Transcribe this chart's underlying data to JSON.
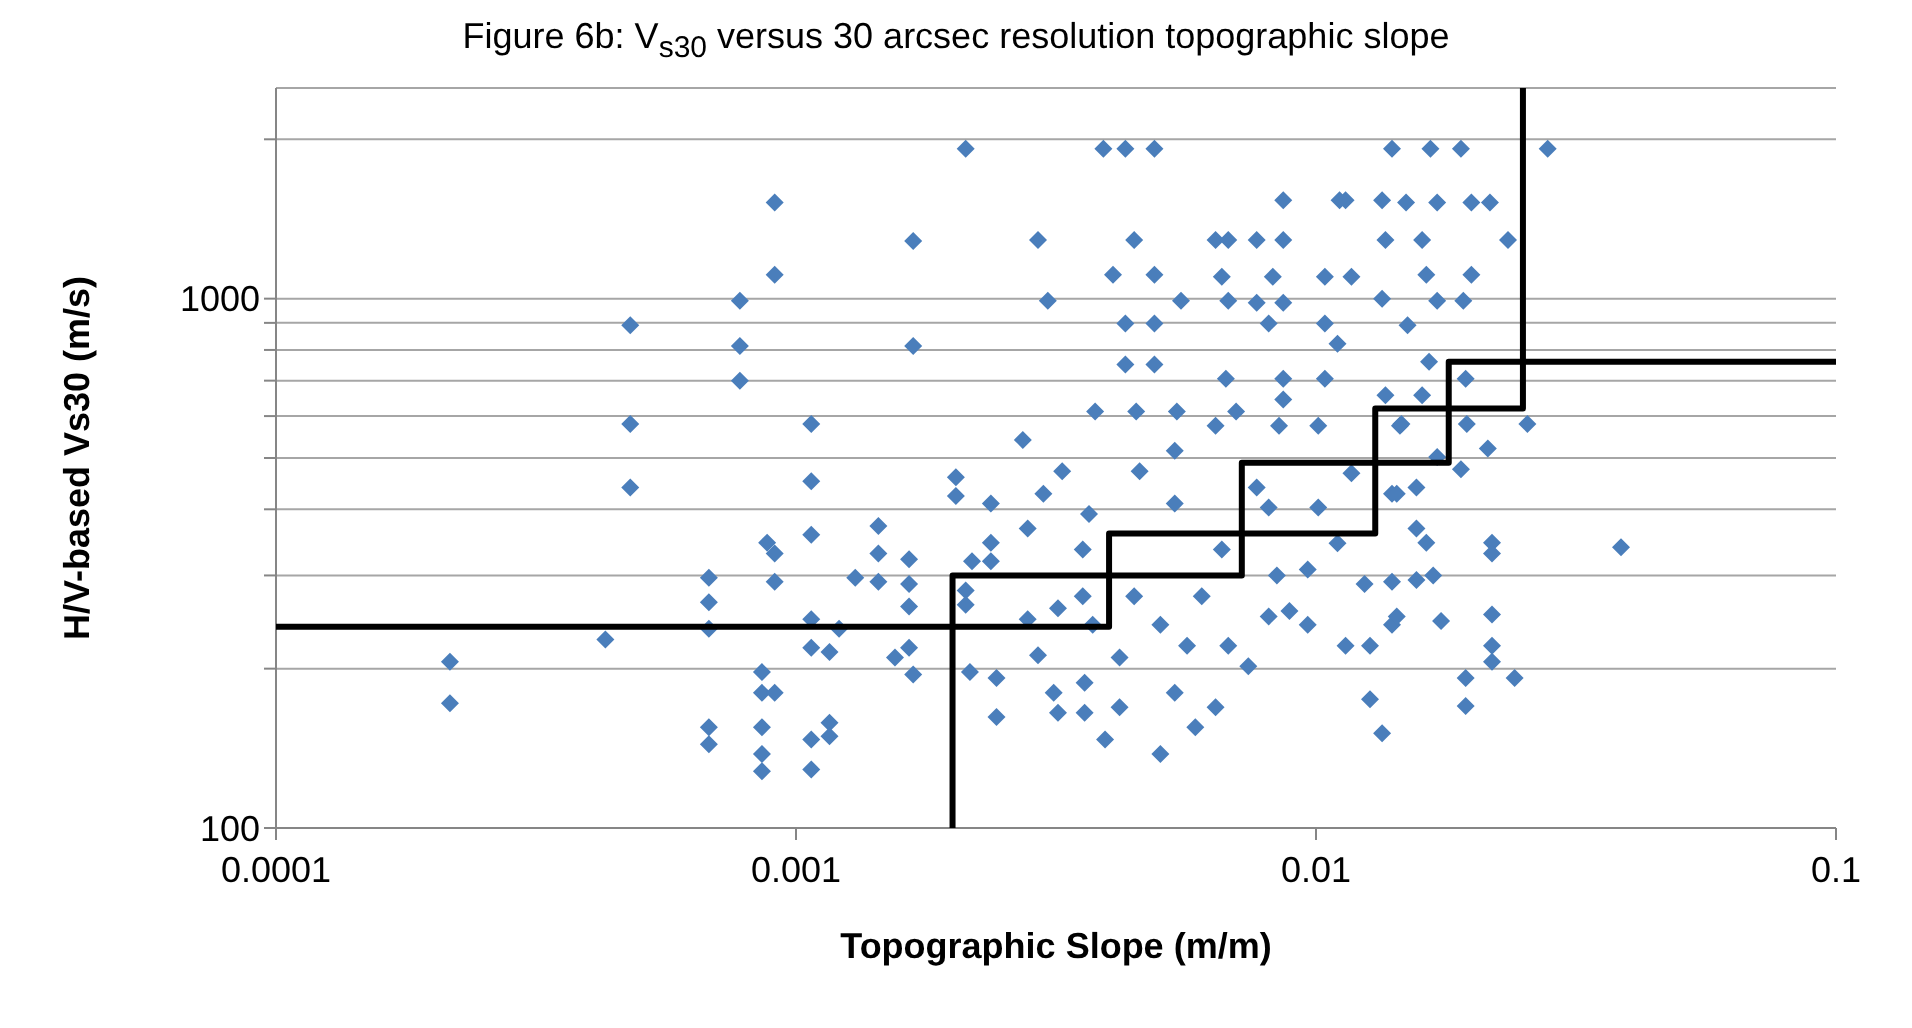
{
  "chart_data": {
    "type": "scatter",
    "title": "Figure 6b: V$_{s30}$ versus 30 arcsec resolution topographic slope",
    "xlabel": "Topographic Slope (m/m)",
    "ylabel": "H/V-based Vs30 (m/s)",
    "log": "xy",
    "grid": "y",
    "legend": false,
    "xlim": [
      0.0001,
      0.1
    ],
    "xticks": [
      0.0001,
      0.001,
      0.01,
      0.1
    ],
    "ylim": [
      100,
      2500
    ],
    "yticks": [
      100,
      {
        "value": 200,
        "label": null
      },
      {
        "value": 300,
        "label": null
      },
      {
        "value": 400,
        "label": null
      },
      {
        "value": 500,
        "label": null
      },
      {
        "value": 600,
        "label": null
      },
      {
        "value": 700,
        "label": null
      },
      {
        "value": 800,
        "label": null
      },
      {
        "value": 900,
        "label": null
      },
      1000,
      {
        "value": 2000,
        "label": null
      }
    ],
    "series": [
      {
        "marker": "diamond",
        "color": "#4a7ebb",
        "x": [
          0.000216,
          0.000216,
          0.00043,
          0.00048,
          0.00048,
          0.00048,
          0.00068,
          0.00068,
          0.00068,
          0.00068,
          0.00068,
          0.00078,
          0.00078,
          0.00078,
          0.00086,
          0.00086,
          0.00086,
          0.00086,
          0.00086,
          0.00088,
          0.00091,
          0.00091,
          0.00091,
          0.00091,
          0.00091,
          0.00107,
          0.00107,
          0.00107,
          0.00107,
          0.00107,
          0.00107,
          0.00107,
          0.00116,
          0.00116,
          0.00116,
          0.00121,
          0.0013,
          0.00144,
          0.00144,
          0.00144,
          0.00155,
          0.00165,
          0.00165,
          0.00165,
          0.00165,
          0.00168,
          0.00168,
          0.00168,
          0.00212,
          0.0039,
          0.0043,
          0.00489,
          0.00292,
          0.00447,
          0.00641,
          0.00769,
          0.00865,
          0.00407,
          0.00489,
          0.00305,
          0.0055,
          0.00678,
          0.0043,
          0.00489,
          0.0043,
          0.00489,
          0.00376,
          0.00451,
          0.0054,
          0.00273,
          0.00203,
          0.00203,
          0.00237,
          0.00237,
          0.00237,
          0.00218,
          0.00212,
          0.00212,
          0.00279,
          0.00292,
          0.00216,
          0.00243,
          0.00243,
          0.00313,
          0.00319,
          0.00319,
          0.00325,
          0.00299,
          0.00279,
          0.00366,
          0.00356,
          0.00356,
          0.00372,
          0.00359,
          0.00359,
          0.00393,
          0.00419,
          0.00419,
          0.00447,
          0.00458,
          0.00535,
          0.00535,
          0.00502,
          0.00502,
          0.00535,
          0.00565,
          0.00603,
          0.00641,
          0.00586,
          0.00678,
          0.00659,
          0.00641,
          0.00702,
          0.00671,
          0.00769,
          0.00811,
          0.00849,
          0.00865,
          0.00865,
          0.00841,
          0.00811,
          0.00741,
          0.00889,
          0.00964,
          0.00964,
          0.0101,
          0.0101,
          0.0104,
          0.011,
          0.0117,
          0.011,
          0.0114,
          0.0124,
          0.0127,
          0.0127,
          0.0134,
          0.014,
          0.014,
          0.014,
          0.0145,
          0.0136,
          0.0134,
          0.0136,
          0.0134,
          0.0114,
          0.014,
          0.0104,
          0.00811,
          0.00865,
          0.00769,
          0.00659,
          0.00826,
          0.0104,
          0.0117,
          0.00865,
          0.0111,
          0.00678,
          0.0166,
          0.019,
          0.0279,
          0.0149,
          0.0171,
          0.0199,
          0.0216,
          0.0234,
          0.016,
          0.0163,
          0.0199,
          0.0171,
          0.0192,
          0.015,
          0.0165,
          0.0194,
          0.016,
          0.0146,
          0.0195,
          0.0255,
          0.0214,
          0.019,
          0.0171,
          0.0143,
          0.0156,
          0.0156,
          0.0163,
          0.0218,
          0.0218,
          0.0386,
          0.0156,
          0.0168,
          0.0143,
          0.0174,
          0.0218,
          0.0218,
          0.0218,
          0.0194,
          0.0241,
          0.0194
        ],
        "values": [
          206,
          172,
          227,
          891,
          580,
          440,
          297,
          267,
          238,
          155,
          144,
          991,
          814,
          700,
          197,
          180,
          155,
          138,
          128,
          346,
          330,
          292,
          180,
          1520,
          1110,
          580,
          452,
          358,
          248,
          219,
          147,
          129,
          215,
          158,
          149,
          238,
          297,
          372,
          330,
          292,
          210,
          322,
          289,
          262,
          219,
          195,
          1285,
          814,
          1920,
          1920,
          1920,
          1920,
          1290,
          1290,
          1290,
          1290,
          1290,
          1110,
          1110,
          991,
          991,
          991,
          898,
          898,
          751,
          751,
          612,
          612,
          612,
          541,
          460,
          424,
          410,
          346,
          319,
          319,
          281,
          264,
          248,
          212,
          197,
          192,
          162,
          180,
          165,
          260,
          472,
          428,
          368,
          392,
          336,
          274,
          242,
          188,
          165,
          147,
          169,
          210,
          274,
          472,
          516,
          410,
          242,
          138,
          180,
          221,
          274,
          169,
          155,
          221,
          336,
          575,
          612,
          706,
          440,
          403,
          575,
          706,
          645,
          300,
          251,
          202,
          257,
          242,
          308,
          403,
          575,
          706,
          822,
          468,
          345,
          221,
          289,
          221,
          175,
          151,
          292,
          428,
          242,
          575,
          657,
          1000,
          1290,
          1535,
          1535,
          1920,
          898,
          898,
          982,
          982,
          1100,
          1100,
          1100,
          1100,
          1535,
          1535,
          1290,
          1920,
          1920,
          1920,
          1520,
          1520,
          1520,
          1520,
          1290,
          1290,
          1110,
          1110,
          991,
          991,
          891,
          760,
          706,
          657,
          580,
          580,
          580,
          521,
          476,
          502,
          428,
          440,
          368,
          346,
          346,
          330,
          339,
          294,
          300,
          251,
          246,
          253,
          221,
          206,
          192,
          192,
          170
        ]
      },
      {
        "type": "line",
        "color": "#000000",
        "line_style": "solid",
        "x": [
          0.002,
          0.002,
          0.0072,
          0.0072,
          0.018,
          0.018,
          0.1
        ],
        "values": [
          100,
          300,
          300,
          490,
          490,
          760,
          760
        ]
      },
      {
        "type": "line",
        "color": "#000000",
        "line_style": "solid",
        "x": [
          0.0001,
          0.004,
          0.004,
          0.013,
          0.013,
          0.025,
          0.025
        ],
        "values": [
          240,
          240,
          360,
          360,
          620,
          620,
          2500
        ]
      }
    ]
  }
}
